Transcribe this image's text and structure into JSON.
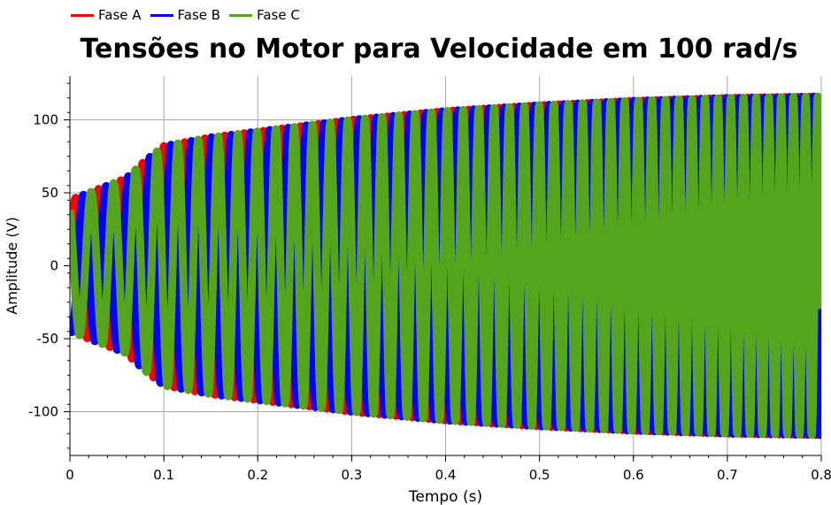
{
  "chart_data": {
    "type": "line",
    "title": "Tensões no Motor para Velocidade em 100 rad/s",
    "xlabel": "Tempo (s)",
    "ylabel": "Amplitude (V)",
    "xlim": [
      0,
      0.8
    ],
    "ylim": [
      -130,
      130
    ],
    "xticks": [
      "0",
      "0.1",
      "0.2",
      "0.3",
      "0.4",
      "0.5",
      "0.6",
      "0.7",
      "0.8"
    ],
    "yticks": [
      "100",
      "50",
      "0",
      "-50",
      "-100"
    ],
    "grid": true,
    "legend_position": "top-left",
    "series": [
      {
        "name": "Fase A",
        "color": "#ff0000",
        "phase_deg": 0,
        "envelope_t": [
          0.0,
          0.02,
          0.04,
          0.06,
          0.08,
          0.1,
          0.15,
          0.2,
          0.3,
          0.4,
          0.5,
          0.6,
          0.7,
          0.8
        ],
        "envelope_v": [
          45,
          50,
          55,
          60,
          72,
          82,
          88,
          92,
          100,
          106,
          110,
          113,
          115,
          116
        ]
      },
      {
        "name": "Fase B",
        "color": "#0000ff",
        "phase_deg": -120,
        "envelope_t": [
          0.0,
          0.02,
          0.04,
          0.06,
          0.08,
          0.1,
          0.15,
          0.2,
          0.3,
          0.4,
          0.5,
          0.6,
          0.7,
          0.8
        ],
        "envelope_v": [
          45,
          50,
          55,
          60,
          72,
          82,
          88,
          92,
          100,
          106,
          110,
          113,
          115,
          116
        ]
      },
      {
        "name": "Fase C",
        "color": "#55a51c",
        "phase_deg": 120,
        "envelope_t": [
          0.0,
          0.02,
          0.04,
          0.06,
          0.08,
          0.1,
          0.15,
          0.2,
          0.3,
          0.4,
          0.5,
          0.6,
          0.7,
          0.8
        ],
        "envelope_v": [
          45,
          50,
          55,
          60,
          72,
          82,
          88,
          92,
          100,
          106,
          110,
          113,
          115,
          116
        ]
      }
    ],
    "fundamental_hz_start": 40,
    "fundamental_hz_end": 78
  },
  "colors": {
    "grid": "#a8a8a8",
    "axis": "#000000"
  }
}
